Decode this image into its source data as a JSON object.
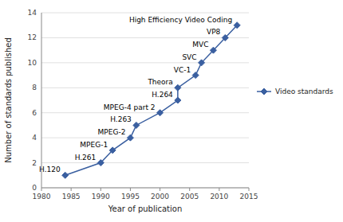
{
  "chart_data": {
    "type": "line",
    "x": [
      1984,
      1990,
      1992,
      1995,
      1996,
      2000,
      2003,
      2003,
      2006,
      2007,
      2009,
      2011,
      2013
    ],
    "series": [
      {
        "name": "Video standards",
        "color": "#3a5fa0",
        "marker": "diamond",
        "values": [
          1,
          2,
          3,
          4,
          5,
          6,
          7,
          8,
          9,
          10,
          11,
          12,
          13
        ]
      }
    ],
    "xlim": [
      1980,
      2015
    ],
    "ylim": [
      0,
      14
    ],
    "xticks": [
      1980,
      1985,
      1990,
      1995,
      2000,
      2005,
      2010,
      2015
    ],
    "yticks": [
      0,
      2,
      4,
      6,
      8,
      10,
      12,
      14
    ],
    "xlabel": "Year of publication",
    "ylabel": "Number of standards published",
    "grid": true,
    "legend": "right",
    "annotations": [
      {
        "text": "H.120",
        "x": 1984,
        "y": 1
      },
      {
        "text": "H.261",
        "x": 1990,
        "y": 2
      },
      {
        "text": "MPEG-1",
        "x": 1992,
        "y": 3
      },
      {
        "text": "MPEG-2",
        "x": 1995,
        "y": 4
      },
      {
        "text": "H.263",
        "x": 1996,
        "y": 5
      },
      {
        "text": "MPEG-4 part 2",
        "x": 2000,
        "y": 6
      },
      {
        "text": "H.264",
        "x": 2003,
        "y": 7
      },
      {
        "text": "Theora",
        "x": 2003,
        "y": 8
      },
      {
        "text": "VC-1",
        "x": 2006,
        "y": 9
      },
      {
        "text": "SVC",
        "x": 2007,
        "y": 10
      },
      {
        "text": "MVC",
        "x": 2009,
        "y": 11
      },
      {
        "text": "VP8",
        "x": 2011,
        "y": 12
      },
      {
        "text": "High Efficiency Video Coding",
        "x": 2013,
        "y": 13
      }
    ]
  }
}
